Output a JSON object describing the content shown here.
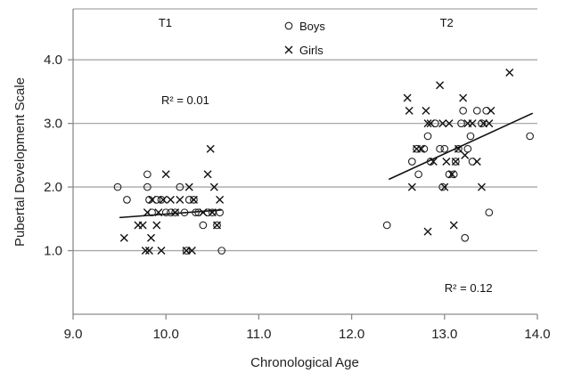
{
  "chart_data": {
    "type": "scatter",
    "title": "",
    "xlabel": "Chronological Age",
    "ylabel": "Pubertal Development Scale",
    "xlim": [
      9.0,
      14.0
    ],
    "ylim": [
      0.0,
      4.8
    ],
    "xticks": [
      "9.0",
      "10.0",
      "11.0",
      "12.0",
      "13.0",
      "14.0"
    ],
    "yticks": [
      "1.0",
      "2.0",
      "3.0",
      "4.0"
    ],
    "ytick_values": [
      1.0,
      2.0,
      3.0,
      4.0
    ],
    "grid": "horizontal",
    "legend_position": "top-center",
    "panel_labels": [
      "T1",
      "T2"
    ],
    "annotations": [
      {
        "text": "R² = 0.01",
        "x": 9.95,
        "y": 3.3
      },
      {
        "text": "R² = 0.12",
        "x": 13.0,
        "y": 0.35
      }
    ],
    "series": [
      {
        "name": "Boys",
        "marker": "circle",
        "points": [
          [
            9.48,
            2.0
          ],
          [
            9.58,
            1.8
          ],
          [
            9.8,
            2.2
          ],
          [
            9.8,
            2.0
          ],
          [
            9.82,
            1.8
          ],
          [
            9.85,
            1.6
          ],
          [
            9.9,
            1.8
          ],
          [
            9.95,
            1.8
          ],
          [
            10.0,
            1.6
          ],
          [
            10.05,
            1.6
          ],
          [
            10.1,
            1.6
          ],
          [
            10.15,
            2.0
          ],
          [
            10.2,
            1.6
          ],
          [
            10.22,
            1.0
          ],
          [
            10.25,
            1.8
          ],
          [
            10.3,
            1.8
          ],
          [
            10.32,
            1.6
          ],
          [
            10.35,
            1.6
          ],
          [
            10.4,
            1.4
          ],
          [
            10.45,
            1.6
          ],
          [
            10.5,
            1.6
          ],
          [
            10.55,
            1.4
          ],
          [
            10.58,
            1.6
          ],
          [
            10.6,
            1.0
          ],
          [
            12.38,
            1.4
          ],
          [
            12.65,
            2.4
          ],
          [
            12.7,
            2.6
          ],
          [
            12.72,
            2.2
          ],
          [
            12.78,
            2.6
          ],
          [
            12.82,
            2.8
          ],
          [
            12.85,
            2.4
          ],
          [
            12.9,
            3.0
          ],
          [
            12.95,
            2.6
          ],
          [
            12.98,
            2.0
          ],
          [
            13.0,
            2.6
          ],
          [
            13.05,
            2.2
          ],
          [
            13.1,
            2.2
          ],
          [
            13.12,
            2.4
          ],
          [
            13.15,
            2.6
          ],
          [
            13.18,
            3.0
          ],
          [
            13.2,
            3.2
          ],
          [
            13.22,
            1.2
          ],
          [
            13.25,
            2.6
          ],
          [
            13.28,
            2.8
          ],
          [
            13.3,
            2.4
          ],
          [
            13.35,
            3.2
          ],
          [
            13.4,
            3.0
          ],
          [
            13.45,
            3.2
          ],
          [
            13.48,
            1.6
          ],
          [
            13.92,
            2.8
          ]
        ]
      },
      {
        "name": "Girls",
        "marker": "x",
        "points": [
          [
            9.55,
            1.2
          ],
          [
            9.7,
            1.4
          ],
          [
            9.75,
            1.4
          ],
          [
            9.78,
            1.0
          ],
          [
            9.8,
            1.6
          ],
          [
            9.82,
            1.0
          ],
          [
            9.84,
            1.2
          ],
          [
            9.85,
            1.8
          ],
          [
            9.9,
            1.4
          ],
          [
            9.92,
            1.6
          ],
          [
            9.95,
            1.0
          ],
          [
            9.97,
            1.8
          ],
          [
            10.0,
            2.2
          ],
          [
            10.05,
            1.8
          ],
          [
            10.1,
            1.6
          ],
          [
            10.15,
            1.8
          ],
          [
            10.22,
            1.0
          ],
          [
            10.25,
            2.0
          ],
          [
            10.28,
            1.0
          ],
          [
            10.3,
            1.8
          ],
          [
            10.4,
            1.6
          ],
          [
            10.45,
            2.2
          ],
          [
            10.48,
            2.6
          ],
          [
            10.5,
            1.6
          ],
          [
            10.52,
            2.0
          ],
          [
            10.55,
            1.4
          ],
          [
            10.58,
            1.8
          ],
          [
            12.6,
            3.4
          ],
          [
            12.62,
            3.2
          ],
          [
            12.65,
            2.0
          ],
          [
            12.7,
            2.6
          ],
          [
            12.75,
            2.6
          ],
          [
            12.8,
            3.2
          ],
          [
            12.82,
            3.0
          ],
          [
            12.85,
            3.0
          ],
          [
            12.82,
            1.3
          ],
          [
            12.88,
            2.4
          ],
          [
            12.95,
            3.6
          ],
          [
            12.98,
            3.0
          ],
          [
            13.0,
            2.0
          ],
          [
            13.02,
            2.4
          ],
          [
            13.05,
            3.0
          ],
          [
            13.08,
            2.2
          ],
          [
            13.1,
            1.4
          ],
          [
            13.12,
            2.4
          ],
          [
            13.15,
            2.6
          ],
          [
            13.2,
            3.4
          ],
          [
            13.22,
            2.5
          ],
          [
            13.25,
            3.0
          ],
          [
            13.3,
            3.0
          ],
          [
            13.35,
            2.4
          ],
          [
            13.4,
            2.0
          ],
          [
            13.42,
            3.0
          ],
          [
            13.48,
            3.0
          ],
          [
            13.5,
            3.2
          ],
          [
            13.7,
            3.8
          ]
        ]
      }
    ],
    "trendlines": [
      {
        "panel": "T1",
        "x": [
          9.5,
          10.6
        ],
        "y": [
          1.52,
          1.64
        ]
      },
      {
        "panel": "T2",
        "x": [
          12.4,
          13.95
        ],
        "y": [
          2.12,
          3.16
        ]
      }
    ]
  },
  "legend": {
    "boys_label": "Boys",
    "girls_label": "Girls"
  }
}
